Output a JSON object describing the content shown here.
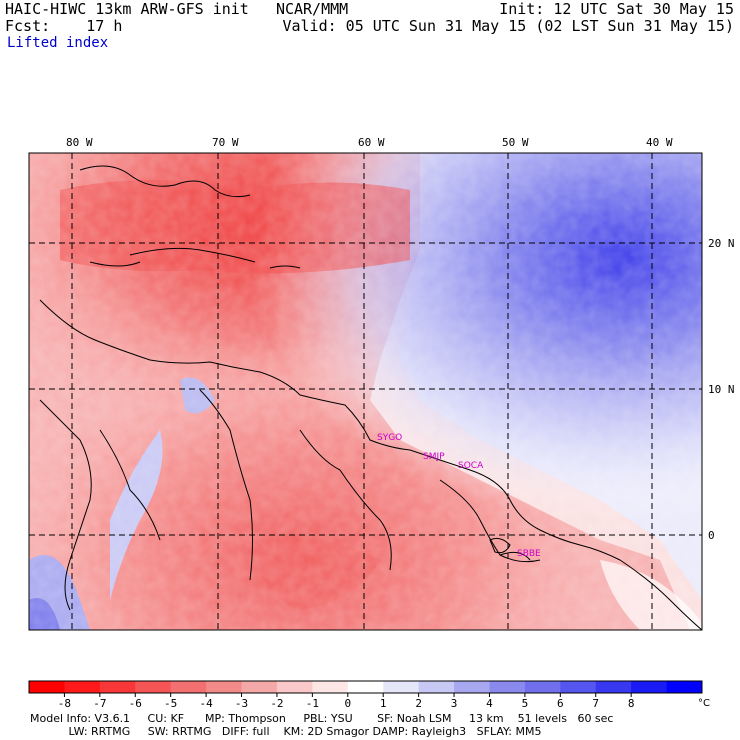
{
  "header": {
    "model_title": "HAIC-HIWC 13km ARW-GFS init",
    "org": "NCAR/MMM",
    "init": "Init: 12 UTC Sat 30 May 15",
    "fcst_label": "Fcst:",
    "fcst_value": "17 h",
    "valid": "Valid: 05 UTC Sun 31 May 15 (02 LST Sun 31 May 15)",
    "field": "Lifted index"
  },
  "map": {
    "lon_labels": [
      "80 W",
      "70 W",
      "60 W",
      "50 W",
      "40 W"
    ],
    "lat_labels": [
      "20 N",
      "10 N",
      "0"
    ],
    "stations": [
      "SYGO",
      "SMJP",
      "SOCA",
      "SBBE"
    ],
    "colors": {
      "strong_neg": "#ee2222",
      "neg": "#f89090",
      "weak_neg": "#fcd0d0",
      "neutral": "#ffffff",
      "weak_pos": "#d0d0f8",
      "pos": "#8f8fee",
      "strong_pos": "#3030e8",
      "station_label": "#cc00cc",
      "grid": "#000000"
    }
  },
  "colorbar": {
    "labels": [
      "-8",
      "-7",
      "-6",
      "-5",
      "-4",
      "-3",
      "-2",
      "-1",
      "0",
      "1",
      "2",
      "3",
      "4",
      "5",
      "6",
      "7",
      "8"
    ],
    "unit": "°C",
    "swatches": [
      "#ff0000",
      "#fe1a1a",
      "#f83838",
      "#f55555",
      "#f27070",
      "#f28a8a",
      "#f5a8a8",
      "#fac8c8",
      "#fde6e6",
      "#ffffff",
      "#e6e6fb",
      "#c8c8f5",
      "#a8a8f0",
      "#8a8aee",
      "#7070ee",
      "#5555ef",
      "#3838f0",
      "#1a1af5",
      "#0000ff"
    ]
  },
  "footer": {
    "line1": "Model Info: V3.6.1     CU: KF      MP: Thompson     PBL: YSU       SF: Noah LSM     13 km    51 levels   60 sec",
    "line2": "           LW: RRTMG     SW: RRTMG   DIFF: full    KM: 2D Smagor DAMP: Rayleigh3   SFLAY: MM5"
  }
}
